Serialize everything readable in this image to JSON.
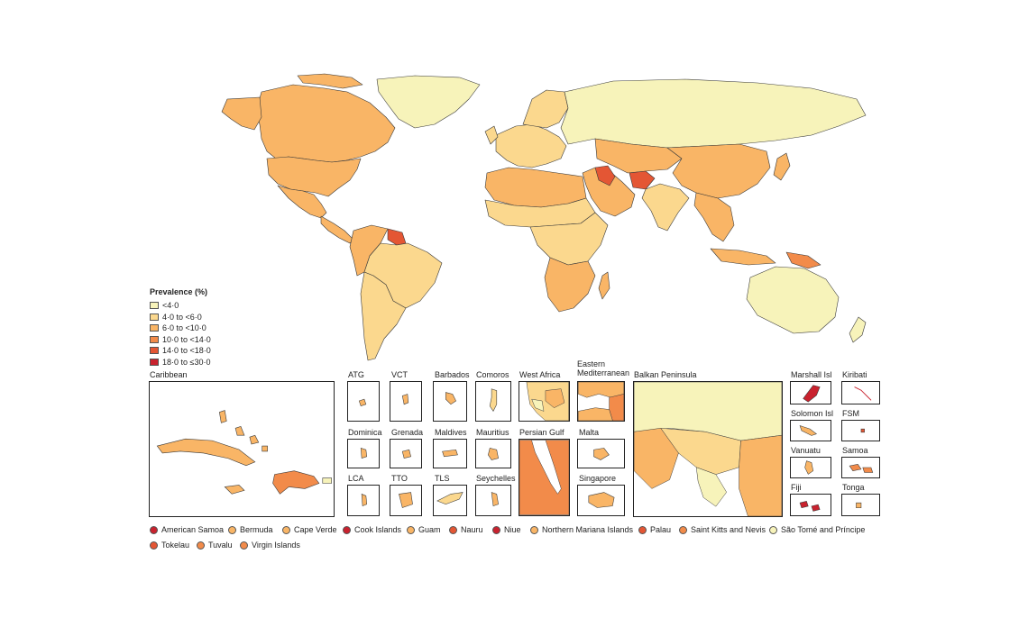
{
  "colors": {
    "c1": "#f7f3ba",
    "c2": "#fbd88e",
    "c3": "#f9b566",
    "c4": "#f28b4a",
    "c5": "#e45634",
    "c6": "#c9222e",
    "border": "#3a3a3a",
    "ocean": "#ffffff"
  },
  "legend": {
    "title": "Prevalence (%)",
    "items": [
      {
        "label": "<4·0",
        "color": "#f7f3ba"
      },
      {
        "label": "4·0 to <6·0",
        "color": "#fbd88e"
      },
      {
        "label": "6·0 to <10·0",
        "color": "#f9b566"
      },
      {
        "label": "10·0 to <14·0",
        "color": "#f28b4a"
      },
      {
        "label": "14·0 to <18·0",
        "color": "#e45634"
      },
      {
        "label": "18·0 to ≤30·0",
        "color": "#c9222e"
      }
    ]
  },
  "regions": [
    {
      "name": "greenland",
      "cls": 1
    },
    {
      "name": "canada",
      "cls": 3
    },
    {
      "name": "usa",
      "cls": 3
    },
    {
      "name": "mexico",
      "cls": 3
    },
    {
      "name": "central-america",
      "cls": 3
    },
    {
      "name": "guianas",
      "cls": 5
    },
    {
      "name": "south-america-north",
      "cls": 3
    },
    {
      "name": "brazil",
      "cls": 2
    },
    {
      "name": "south-america-south",
      "cls": 2
    },
    {
      "name": "europe",
      "cls": 2
    },
    {
      "name": "scandinavia",
      "cls": 2
    },
    {
      "name": "russia",
      "cls": 1
    },
    {
      "name": "north-africa",
      "cls": 3
    },
    {
      "name": "sahel",
      "cls": 2
    },
    {
      "name": "central-africa",
      "cls": 2
    },
    {
      "name": "southern-africa",
      "cls": 3
    },
    {
      "name": "middle-east",
      "cls": 3
    },
    {
      "name": "iraq",
      "cls": 5
    },
    {
      "name": "afghanistan",
      "cls": 5
    },
    {
      "name": "central-asia",
      "cls": 3
    },
    {
      "name": "india",
      "cls": 2
    },
    {
      "name": "china",
      "cls": 3
    },
    {
      "name": "southeast-asia",
      "cls": 3
    },
    {
      "name": "japan",
      "cls": 3
    },
    {
      "name": "indonesia",
      "cls": 3
    },
    {
      "name": "papua-new-guinea",
      "cls": 4
    },
    {
      "name": "australia",
      "cls": 1
    },
    {
      "name": "new-zealand",
      "cls": 1
    }
  ],
  "insets": {
    "caribbean": "Caribbean",
    "atg": "ATG",
    "vct": "VCT",
    "barbados": "Barbados",
    "comoros": "Comoros",
    "west_africa": "West Africa",
    "eastern_med": "Eastern\nMediterranean",
    "balkan": "Balkan Peninsula",
    "marshall": "Marshall Isl",
    "kiribati": "Kiribati",
    "dominica": "Dominica",
    "grenada": "Grenada",
    "maldives": "Maldives",
    "mauritius": "Mauritius",
    "persian_gulf": "Persian Gulf",
    "malta": "Malta",
    "solomon": "Solomon Isl",
    "fsm": "FSM",
    "vanuatu": "Vanuatu",
    "samoa": "Samoa",
    "lca": "LCA",
    "tto": "TTO",
    "tls": "TLS",
    "seychelles": "Seychelles",
    "singapore": "Singapore",
    "fiji": "Fiji",
    "tonga": "Tonga"
  },
  "small_territories": [
    {
      "label": "American Samoa",
      "color": "#c9222e"
    },
    {
      "label": "Bermuda",
      "color": "#f9b566"
    },
    {
      "label": "Cape Verde",
      "color": "#f9b566"
    },
    {
      "label": "Cook Islands",
      "color": "#c9222e"
    },
    {
      "label": "Guam",
      "color": "#f9b566"
    },
    {
      "label": "Nauru",
      "color": "#e45634"
    },
    {
      "label": "Niue",
      "color": "#c9222e"
    },
    {
      "label": "Northern Mariana Islands",
      "color": "#f9b566"
    },
    {
      "label": "Palau",
      "color": "#e45634"
    },
    {
      "label": "Saint Kitts and Nevis",
      "color": "#f28b4a"
    },
    {
      "label": "São Tomé and Príncipe",
      "color": "#f7f3ba"
    },
    {
      "label": "Tokelau",
      "color": "#e45634"
    },
    {
      "label": "Tuvalu",
      "color": "#f28b4a"
    },
    {
      "label": "Virgin Islands",
      "color": "#f28b4a"
    }
  ]
}
